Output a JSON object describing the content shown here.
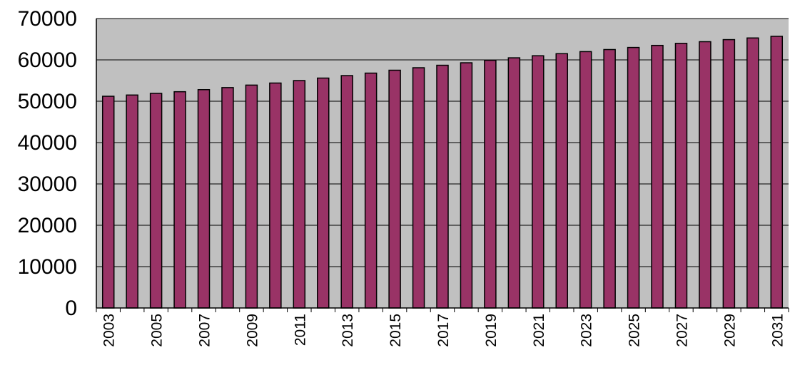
{
  "chart_data": {
    "type": "bar",
    "title": "",
    "xlabel": "",
    "ylabel": "",
    "ylim": [
      0,
      70000
    ],
    "yticks": [
      0,
      10000,
      20000,
      30000,
      40000,
      50000,
      60000,
      70000
    ],
    "grid": true,
    "legend": "none",
    "categories": [
      "2003",
      "2004",
      "2005",
      "2006",
      "2007",
      "2008",
      "2009",
      "2010",
      "2011",
      "2012",
      "2013",
      "2014",
      "2015",
      "2016",
      "2017",
      "2018",
      "2019",
      "2020",
      "2021",
      "2022",
      "2023",
      "2024",
      "2025",
      "2026",
      "2027",
      "2028",
      "2029",
      "2030",
      "2031"
    ],
    "x_tick_labels": [
      "2003",
      "2005",
      "2007",
      "2009",
      "2011",
      "2013",
      "2015",
      "2017",
      "2019",
      "2021",
      "2023",
      "2025",
      "2027",
      "2029",
      "2031"
    ],
    "values": [
      51200,
      51500,
      51900,
      52300,
      52800,
      53300,
      53900,
      54400,
      55000,
      55600,
      56200,
      56800,
      57500,
      58100,
      58700,
      59300,
      59900,
      60500,
      61000,
      61500,
      62000,
      62500,
      63000,
      63500,
      64000,
      64400,
      64900,
      65300,
      65700
    ],
    "colors": {
      "bar_fill": "#993366",
      "bar_stroke": "#000000",
      "plot_background": "#c0c0c0",
      "gridline": "#000000"
    }
  }
}
